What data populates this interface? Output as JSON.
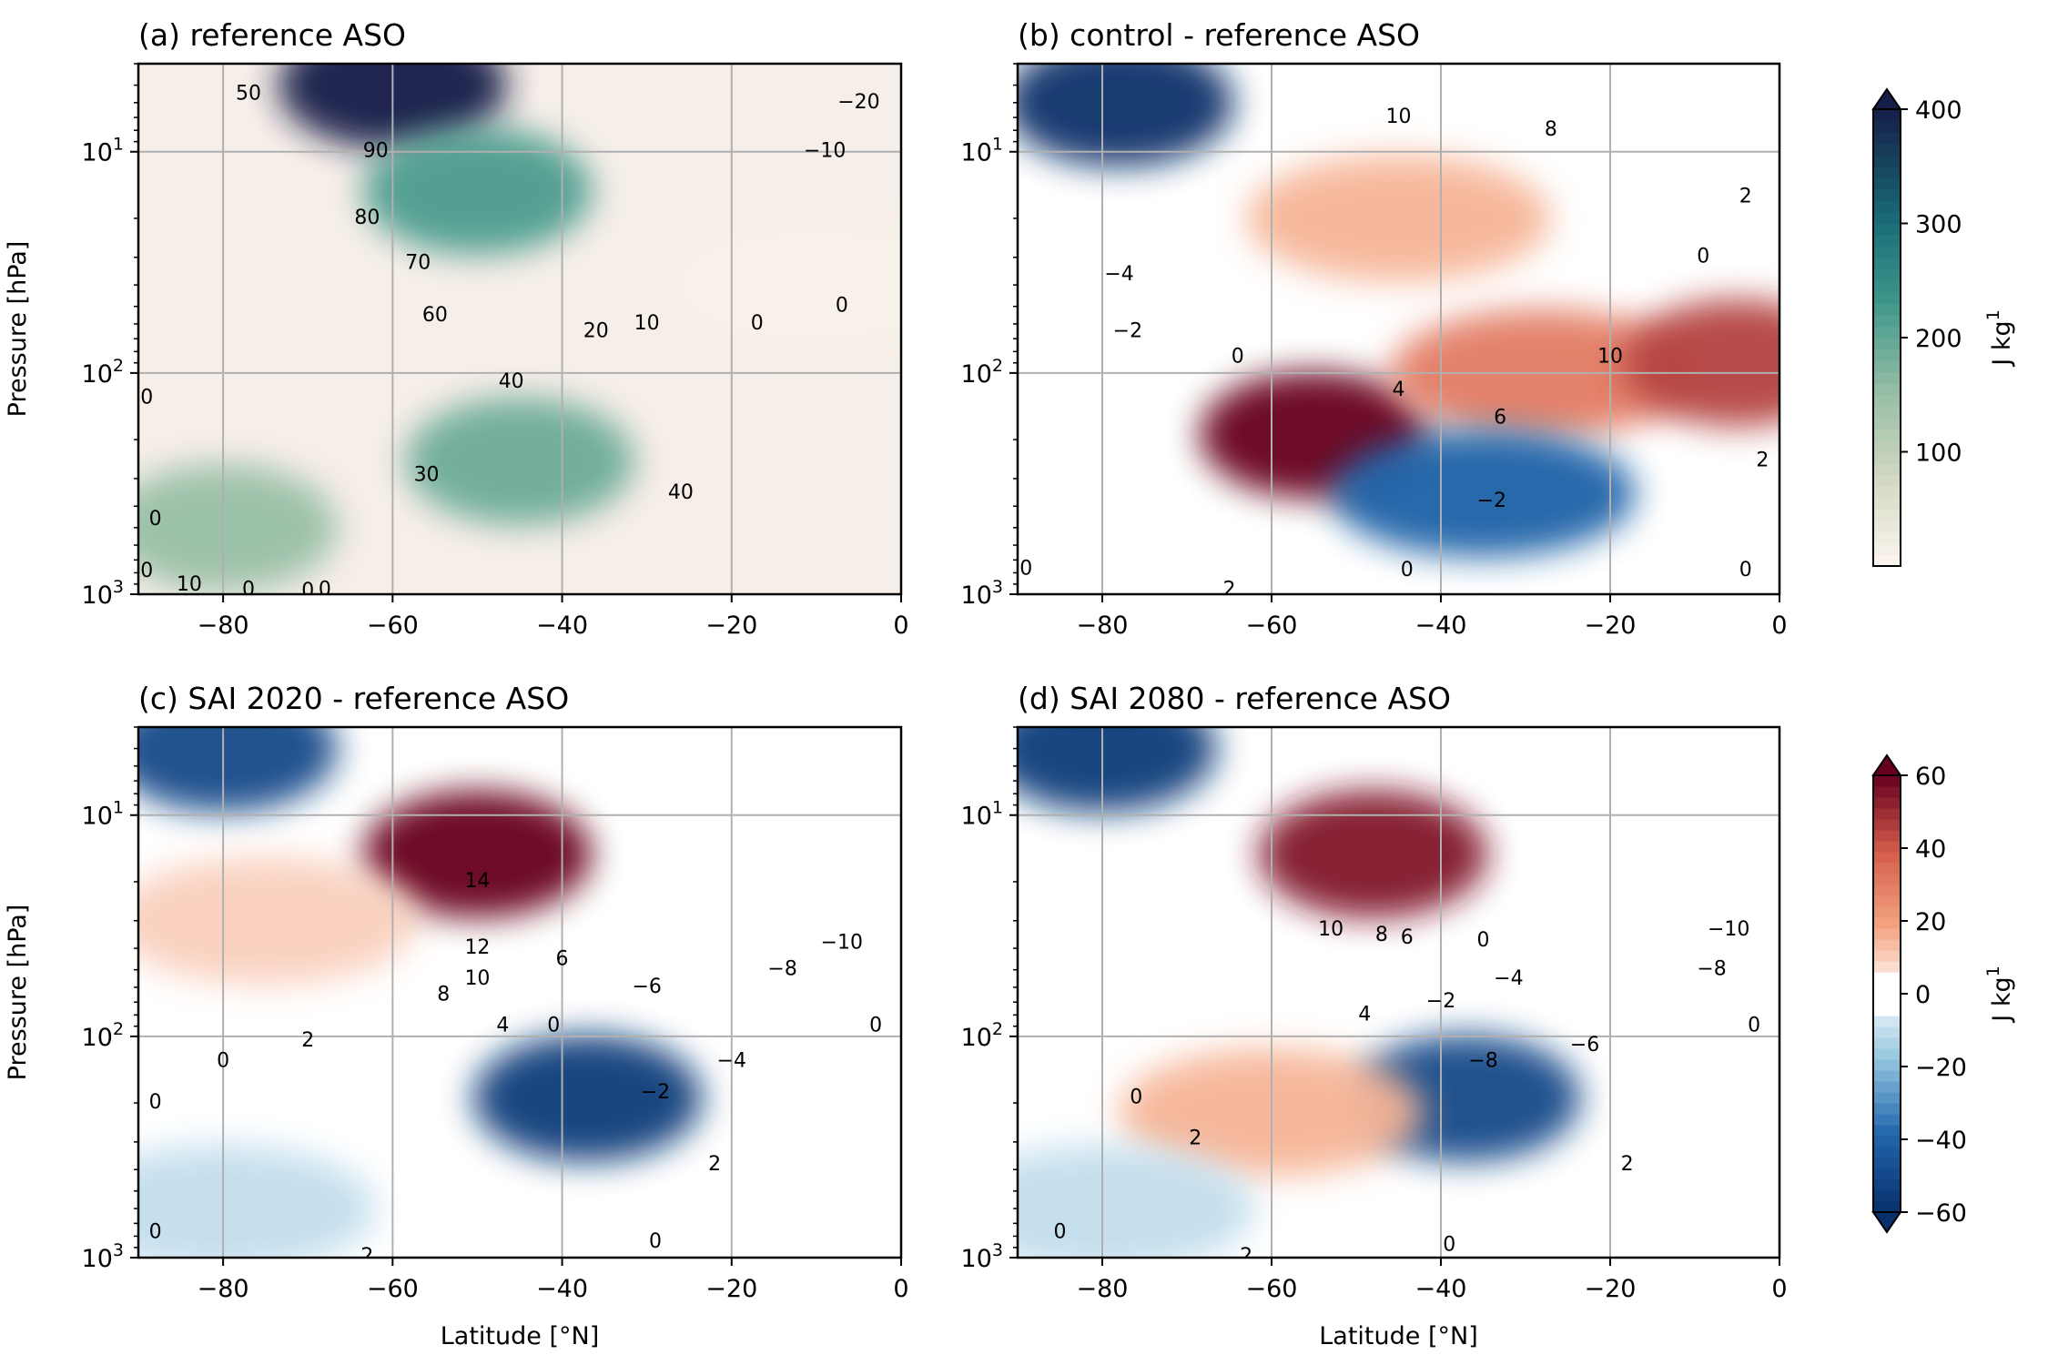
{
  "chart_data": [
    {
      "type": "heatmap",
      "panel": "a",
      "title": "(a) reference ASO",
      "xlabel": "",
      "ylabel": "Pressure [hPa]",
      "xlim": [
        -90,
        0
      ],
      "ylim": [
        1000,
        4
      ],
      "yscale": "log",
      "grid": true,
      "colormap": "sequential-teal (0 to 400 J kg1)",
      "xticks": [
        "−80",
        "−60",
        "−40",
        "−20",
        "0"
      ],
      "yticks": [
        {
          "base": "10",
          "exp": "1"
        },
        {
          "base": "10",
          "exp": "2"
        },
        {
          "base": "10",
          "exp": "3"
        }
      ],
      "fill_features": [
        {
          "lat": -60,
          "p": 5,
          "value": 400
        },
        {
          "lat": -50,
          "p": 15,
          "value": 220
        },
        {
          "lat": -45,
          "p": 250,
          "value": 190
        },
        {
          "lat": -80,
          "p": 500,
          "value": 150
        },
        {
          "lat": -10,
          "p": 40,
          "value": 10
        }
      ],
      "contour_labels": [
        {
          "text": "50",
          "lat": -77,
          "p": 5.5
        },
        {
          "text": "90",
          "lat": -62,
          "p": 10
        },
        {
          "text": "80",
          "lat": -63,
          "p": 20
        },
        {
          "text": "70",
          "lat": -57,
          "p": 32
        },
        {
          "text": "60",
          "lat": -55,
          "p": 55
        },
        {
          "text": "40",
          "lat": -46,
          "p": 110
        },
        {
          "text": "20",
          "lat": -36,
          "p": 65
        },
        {
          "text": "10",
          "lat": -30,
          "p": 60
        },
        {
          "text": "0",
          "lat": -17,
          "p": 60
        },
        {
          "text": "0",
          "lat": -7,
          "p": 50
        },
        {
          "text": "−20",
          "lat": -5,
          "p": 6
        },
        {
          "text": "−10",
          "lat": -9,
          "p": 10
        },
        {
          "text": "30",
          "lat": -56,
          "p": 290
        },
        {
          "text": "40",
          "lat": -26,
          "p": 350
        },
        {
          "text": "0",
          "lat": -89,
          "p": 130
        },
        {
          "text": "0",
          "lat": -88,
          "p": 460
        },
        {
          "text": "0",
          "lat": -89,
          "p": 790
        },
        {
          "text": "10",
          "lat": -84,
          "p": 910
        },
        {
          "text": "0",
          "lat": -77,
          "p": 960
        },
        {
          "text": "0",
          "lat": -70,
          "p": 970
        },
        {
          "text": "0",
          "lat": -68,
          "p": 960
        }
      ]
    },
    {
      "type": "heatmap",
      "panel": "b",
      "title": "(b) control - reference ASO",
      "xlabel": "",
      "ylabel": "",
      "xlim": [
        -90,
        0
      ],
      "ylim": [
        1000,
        4
      ],
      "yscale": "log",
      "grid": true,
      "colormap": "diverging blue-white-red (−60 to 60 J kg1)",
      "xticks": [
        "−80",
        "−60",
        "−40",
        "−20",
        "0"
      ],
      "yticks": [
        {
          "base": "10",
          "exp": "1"
        },
        {
          "base": "10",
          "exp": "2"
        },
        {
          "base": "10",
          "exp": "3"
        }
      ],
      "fill_features": [
        {
          "lat": -78,
          "p": 6,
          "value": -60
        },
        {
          "lat": -55,
          "p": 190,
          "value": 60
        },
        {
          "lat": -28,
          "p": 100,
          "value": 30
        },
        {
          "lat": -35,
          "p": 350,
          "value": -40
        },
        {
          "lat": -5,
          "p": 90,
          "value": 45
        },
        {
          "lat": -45,
          "p": 20,
          "value": 15
        }
      ],
      "contour_labels": [
        {
          "text": "10",
          "lat": -45,
          "p": 7
        },
        {
          "text": "8",
          "lat": -27,
          "p": 8
        },
        {
          "text": "2",
          "lat": -4,
          "p": 16
        },
        {
          "text": "0",
          "lat": -9,
          "p": 30
        },
        {
          "text": "−4",
          "lat": -78,
          "p": 36
        },
        {
          "text": "−2",
          "lat": -77,
          "p": 65
        },
        {
          "text": "0",
          "lat": -64,
          "p": 85
        },
        {
          "text": "4",
          "lat": -45,
          "p": 120
        },
        {
          "text": "10",
          "lat": -20,
          "p": 85
        },
        {
          "text": "6",
          "lat": -33,
          "p": 160
        },
        {
          "text": "−2",
          "lat": -34,
          "p": 380
        },
        {
          "text": "0",
          "lat": -89,
          "p": 770
        },
        {
          "text": "0",
          "lat": -44,
          "p": 780
        },
        {
          "text": "2",
          "lat": -65,
          "p": 960
        },
        {
          "text": "0",
          "lat": -4,
          "p": 780
        },
        {
          "text": "2",
          "lat": -2,
          "p": 250
        }
      ]
    },
    {
      "type": "heatmap",
      "panel": "c",
      "title": "(c) SAI 2020 - reference ASO",
      "xlabel": "Latitude [°N]",
      "ylabel": "Pressure [hPa]",
      "xlim": [
        -90,
        0
      ],
      "ylim": [
        1000,
        4
      ],
      "yscale": "log",
      "grid": true,
      "colormap": "diverging blue-white-red (−60 to 60 J kg1)",
      "xticks": [
        "−80",
        "−60",
        "−40",
        "−20",
        "0"
      ],
      "yticks": [
        {
          "base": "10",
          "exp": "1"
        },
        {
          "base": "10",
          "exp": "2"
        },
        {
          "base": "10",
          "exp": "3"
        }
      ],
      "fill_features": [
        {
          "lat": -80,
          "p": 5,
          "value": -50
        },
        {
          "lat": -50,
          "p": 15,
          "value": 60
        },
        {
          "lat": -37,
          "p": 190,
          "value": -55
        },
        {
          "lat": -75,
          "p": 30,
          "value": 10
        },
        {
          "lat": -80,
          "p": 600,
          "value": -10
        }
      ],
      "contour_labels": [
        {
          "text": "14",
          "lat": -50,
          "p": 20
        },
        {
          "text": "12",
          "lat": -50,
          "p": 40
        },
        {
          "text": "6",
          "lat": -40,
          "p": 45
        },
        {
          "text": "10",
          "lat": -50,
          "p": 55
        },
        {
          "text": "8",
          "lat": -54,
          "p": 65
        },
        {
          "text": "4",
          "lat": -47,
          "p": 90
        },
        {
          "text": "0",
          "lat": -41,
          "p": 90
        },
        {
          "text": "−6",
          "lat": -30,
          "p": 60
        },
        {
          "text": "−8",
          "lat": -14,
          "p": 50
        },
        {
          "text": "−10",
          "lat": -7,
          "p": 38
        },
        {
          "text": "0",
          "lat": -3,
          "p": 90
        },
        {
          "text": "−4",
          "lat": -20,
          "p": 130
        },
        {
          "text": "2",
          "lat": -70,
          "p": 105
        },
        {
          "text": "0",
          "lat": -80,
          "p": 130
        },
        {
          "text": "−2",
          "lat": -29,
          "p": 180
        },
        {
          "text": "0",
          "lat": -88,
          "p": 200
        },
        {
          "text": "2",
          "lat": -22,
          "p": 380
        },
        {
          "text": "0",
          "lat": -29,
          "p": 850
        },
        {
          "text": "0",
          "lat": -88,
          "p": 770
        },
        {
          "text": "2",
          "lat": -63,
          "p": 990
        }
      ]
    },
    {
      "type": "heatmap",
      "panel": "d",
      "title": "(d) SAI 2080 - reference ASO",
      "xlabel": "Latitude [°N]",
      "ylabel": "",
      "xlim": [
        -90,
        0
      ],
      "ylim": [
        1000,
        4
      ],
      "yscale": "log",
      "grid": true,
      "colormap": "diverging blue-white-red (−60 to 60 J kg1)",
      "xticks": [
        "−80",
        "−60",
        "−40",
        "−20",
        "0"
      ],
      "yticks": [
        {
          "base": "10",
          "exp": "1"
        },
        {
          "base": "10",
          "exp": "2"
        },
        {
          "base": "10",
          "exp": "3"
        }
      ],
      "fill_features": [
        {
          "lat": -80,
          "p": 5,
          "value": -55
        },
        {
          "lat": -48,
          "p": 15,
          "value": 55
        },
        {
          "lat": -37,
          "p": 190,
          "value": -50
        },
        {
          "lat": -60,
          "p": 220,
          "value": 15
        },
        {
          "lat": -80,
          "p": 600,
          "value": -10
        }
      ],
      "contour_labels": [
        {
          "text": "10",
          "lat": -53,
          "p": 33
        },
        {
          "text": "8",
          "lat": -47,
          "p": 35
        },
        {
          "text": "6",
          "lat": -44,
          "p": 36
        },
        {
          "text": "0",
          "lat": -35,
          "p": 37
        },
        {
          "text": "−4",
          "lat": -32,
          "p": 55
        },
        {
          "text": "−2",
          "lat": -40,
          "p": 70
        },
        {
          "text": "4",
          "lat": -49,
          "p": 80
        },
        {
          "text": "−10",
          "lat": -6,
          "p": 33
        },
        {
          "text": "−8",
          "lat": -8,
          "p": 50
        },
        {
          "text": "0",
          "lat": -3,
          "p": 90
        },
        {
          "text": "−8",
          "lat": -35,
          "p": 130
        },
        {
          "text": "−6",
          "lat": -23,
          "p": 110
        },
        {
          "text": "0",
          "lat": -76,
          "p": 190
        },
        {
          "text": "2",
          "lat": -69,
          "p": 290
        },
        {
          "text": "2",
          "lat": -18,
          "p": 380
        },
        {
          "text": "0",
          "lat": -39,
          "p": 880
        },
        {
          "text": "0",
          "lat": -85,
          "p": 770
        },
        {
          "text": "2",
          "lat": -63,
          "p": 990
        }
      ]
    }
  ],
  "colorbars": [
    {
      "label": "J kg1",
      "label_base": "J kg",
      "label_exp": "1",
      "ticks": [
        "100",
        "200",
        "300",
        "400"
      ],
      "range": [
        0,
        400
      ],
      "extend": "max"
    },
    {
      "label": "J kg1",
      "label_base": "J kg",
      "label_exp": "1",
      "ticks": [
        "−60",
        "−40",
        "−20",
        "0",
        "20",
        "40",
        "60"
      ],
      "range": [
        -60,
        60
      ],
      "extend": "both"
    }
  ]
}
